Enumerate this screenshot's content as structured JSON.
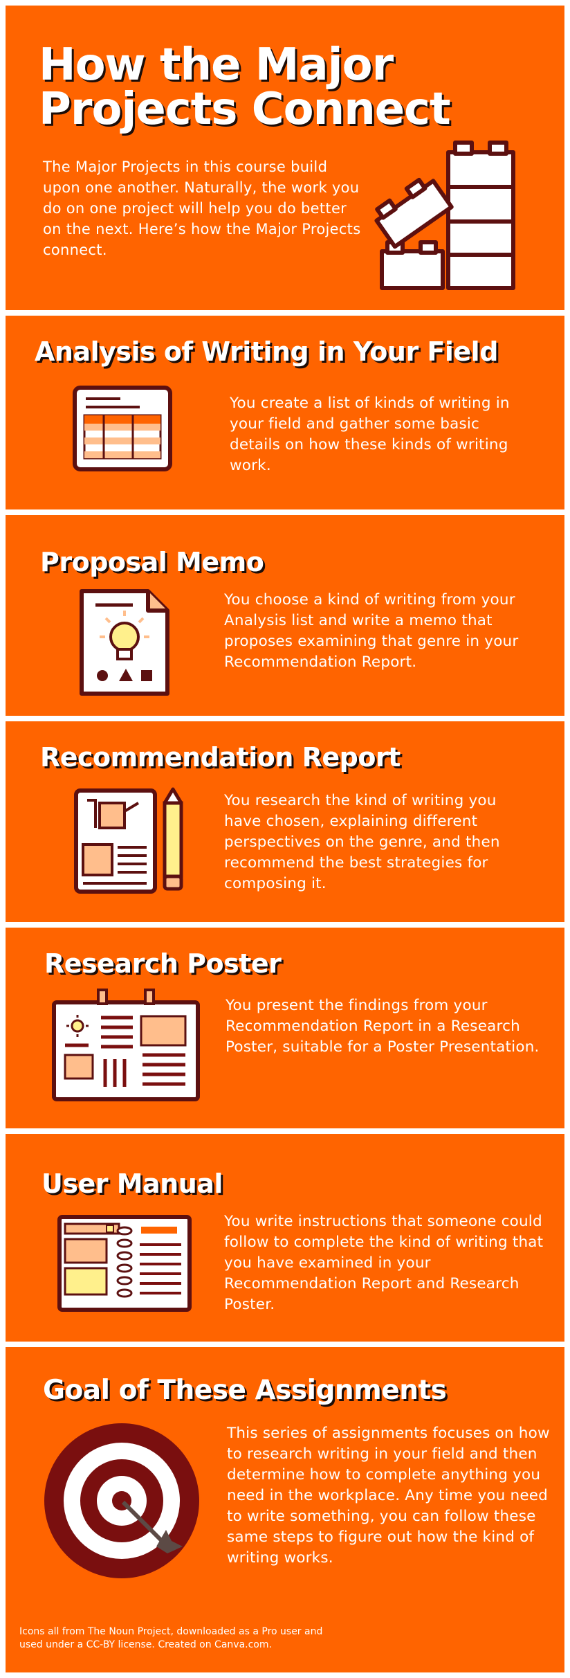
{
  "header": {
    "title_line1": "How the Major",
    "title_line2": "Projects Connect",
    "intro": "The Major Projects in this course build upon one another. Naturally, the work you do on one project will help you do better on the next. Here’s how the Major Projects connect."
  },
  "sections": [
    {
      "heading": "Analysis of Writing in Your Field",
      "icon": "spreadsheet-document-icon",
      "text": "You create a list of kinds of writing in your field and gather some basic details on how these kinds of writing work."
    },
    {
      "heading": "Proposal Memo",
      "icon": "lightbulb-document-icon",
      "text": "You choose a kind of writing from your Analysis list and write a memo that proposes examining that genre in your Recommendation Report."
    },
    {
      "heading": "Recommendation Report",
      "icon": "report-pencil-icon",
      "text": "You research the kind of writing you have chosen, explaining different perspectives on the genre, and then recommend the best strategies for composing it."
    },
    {
      "heading": "Research Poster",
      "icon": "poster-board-icon",
      "text": "You present the findings from your Recommendation Report in a Research Poster, suitable for a Poster Presentation."
    },
    {
      "heading": "User Manual",
      "icon": "open-manual-icon",
      "text": "You write instructions that someone could follow to complete the kind of writing that you have examined in your Recommendation Report and Research Poster."
    },
    {
      "heading": "Goal of These Assignments",
      "icon": "target-arrow-icon",
      "text": "This series of assignments focuses on how to research writing in your field and then determine how to complete anything you need in the workplace. Any time you need to write something, you can follow these same steps to figure out how the kind of writing works."
    }
  ],
  "footer": {
    "credit": "Icons all from The Noun Project, downloaded as a Pro user and used under a CC-BY license. Created on Canva.com."
  },
  "colors": {
    "panel": "#ff6400",
    "icon_outline": "#5c1010",
    "icon_fill": "#ffffff",
    "accent_orange": "#ff6400",
    "peach": "#ffbe8c",
    "yellow": "#fff08c",
    "dark_red": "#7a0f0f"
  }
}
